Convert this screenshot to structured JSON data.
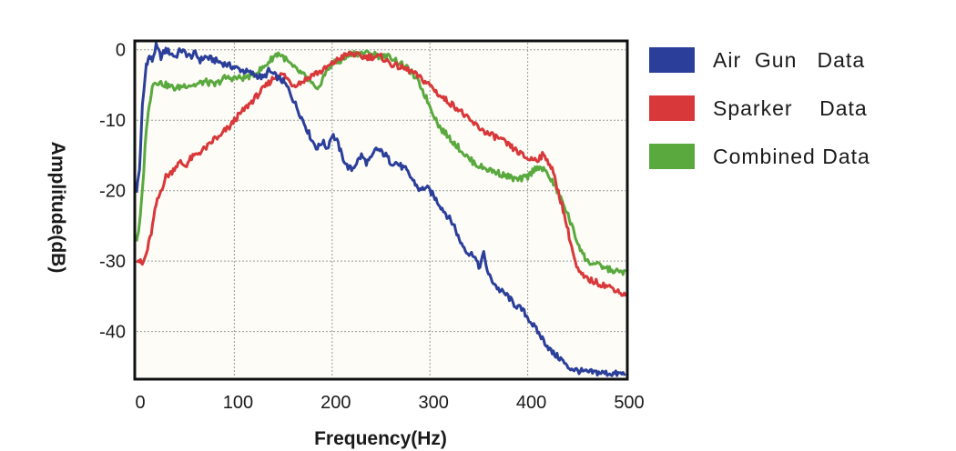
{
  "chart_data": {
    "type": "line",
    "title": "",
    "xlabel": "Frequency(Hz)",
    "ylabel": "Amplitude(dB)",
    "xlim": [
      0,
      500
    ],
    "ylim": [
      -46.5,
      1
    ],
    "x_ticks": [
      0,
      100,
      200,
      300,
      400,
      500
    ],
    "y_ticks": [
      0,
      -10,
      -20,
      -30,
      -40
    ],
    "grid": true,
    "legend_position": "right",
    "series": [
      {
        "name": "Air  Gun   Data",
        "color": "#2b3f9a",
        "x": [
          0,
          3,
          6,
          10,
          13,
          16,
          20,
          25,
          30,
          35,
          40,
          45,
          50,
          55,
          60,
          65,
          70,
          80,
          90,
          100,
          110,
          120,
          130,
          135,
          140,
          145,
          150,
          155,
          160,
          165,
          170,
          175,
          180,
          185,
          190,
          195,
          200,
          205,
          210,
          215,
          220,
          225,
          230,
          235,
          240,
          245,
          250,
          255,
          260,
          265,
          270,
          275,
          280,
          285,
          290,
          295,
          300,
          305,
          310,
          315,
          320,
          325,
          330,
          335,
          340,
          345,
          350,
          355,
          360,
          365,
          370,
          375,
          380,
          385,
          390,
          395,
          400,
          405,
          410,
          415,
          420,
          425,
          430,
          435,
          440,
          450,
          460,
          470,
          480,
          490,
          500
        ],
        "y": [
          -20,
          -17,
          -8,
          -2,
          -1,
          -1.5,
          0.5,
          -1,
          0,
          -0.5,
          -1,
          0,
          -0.5,
          -1,
          -0.5,
          -1.5,
          -1,
          -1.5,
          -2,
          -2.5,
          -3,
          -3.5,
          -4,
          -3,
          -3.5,
          -4,
          -4.5,
          -5.5,
          -7,
          -8.5,
          -10,
          -11.5,
          -13,
          -14,
          -13,
          -14,
          -12,
          -13,
          -15,
          -16.5,
          -17,
          -16,
          -15,
          -16,
          -15.5,
          -14,
          -14.5,
          -15,
          -16,
          -16,
          -16.5,
          -17,
          -18,
          -19,
          -20,
          -19.5,
          -20,
          -21,
          -22,
          -23,
          -24,
          -25,
          -27,
          -28,
          -29,
          -29,
          -31,
          -29,
          -32,
          -33,
          -34,
          -34.5,
          -35,
          -36,
          -36.5,
          -37,
          -38,
          -39,
          -40,
          -41,
          -42,
          -43,
          -43.5,
          -44,
          -45,
          -45.5,
          -45.8,
          -45.8,
          -45.9,
          -46,
          -46
        ]
      },
      {
        "name": "Sparker    Data",
        "color": "#d8383a",
        "x": [
          0,
          3,
          6,
          10,
          15,
          20,
          25,
          30,
          35,
          40,
          45,
          50,
          55,
          60,
          65,
          70,
          75,
          80,
          85,
          90,
          95,
          100,
          110,
          120,
          130,
          140,
          150,
          160,
          170,
          180,
          190,
          200,
          210,
          220,
          230,
          240,
          250,
          260,
          270,
          280,
          290,
          300,
          310,
          320,
          330,
          340,
          350,
          360,
          370,
          380,
          390,
          400,
          405,
          410,
          415,
          420,
          425,
          430,
          435,
          440,
          445,
          450,
          455,
          460,
          470,
          480,
          490,
          500
        ],
        "y": [
          -29.5,
          -30,
          -30.5,
          -29,
          -26,
          -22,
          -20,
          -18,
          -17.5,
          -16.5,
          -16,
          -16.5,
          -15.5,
          -15,
          -14.5,
          -14,
          -13.5,
          -12.5,
          -12.5,
          -11.5,
          -11,
          -10,
          -8.5,
          -7,
          -5.5,
          -4,
          -3.5,
          -5,
          -4.5,
          -3.5,
          -3,
          -2,
          -1,
          -0.5,
          -1,
          -1,
          -1,
          -2,
          -2.5,
          -3,
          -4,
          -5,
          -6.5,
          -7.5,
          -8.5,
          -10,
          -11,
          -12,
          -12.5,
          -13.5,
          -14.5,
          -15.5,
          -15.5,
          -15.5,
          -15,
          -15.5,
          -17,
          -19.5,
          -22,
          -25,
          -28,
          -31,
          -32,
          -32.5,
          -33,
          -33.5,
          -34,
          -35
        ]
      },
      {
        "name": "Combined Data",
        "color": "#5aa93e",
        "x": [
          0,
          3,
          6,
          10,
          13,
          16,
          20,
          30,
          40,
          50,
          60,
          70,
          80,
          90,
          100,
          110,
          120,
          130,
          140,
          145,
          150,
          160,
          170,
          180,
          185,
          190,
          195,
          200,
          210,
          220,
          230,
          240,
          250,
          260,
          270,
          280,
          290,
          300,
          310,
          320,
          330,
          340,
          350,
          360,
          370,
          380,
          390,
          400,
          410,
          420,
          430,
          440,
          445,
          450,
          455,
          460,
          470,
          480,
          490,
          500
        ],
        "y": [
          -27,
          -25,
          -20,
          -11,
          -8,
          -5,
          -4.5,
          -5,
          -5.5,
          -5,
          -5,
          -4.5,
          -5,
          -4,
          -4,
          -4,
          -3.5,
          -2.5,
          -1,
          -0.5,
          -1,
          -2.5,
          -3.5,
          -5,
          -6,
          -4,
          -3,
          -2,
          -1.5,
          -0.5,
          -0.5,
          -0.5,
          -1,
          -1,
          -2,
          -3,
          -5,
          -8,
          -11,
          -12.5,
          -14,
          -15.5,
          -16.5,
          -17,
          -17.5,
          -18,
          -18.5,
          -18,
          -16.5,
          -17.5,
          -20,
          -23,
          -25,
          -27,
          -28.5,
          -30,
          -30.5,
          -31,
          -31.5,
          -31.5
        ]
      }
    ]
  }
}
